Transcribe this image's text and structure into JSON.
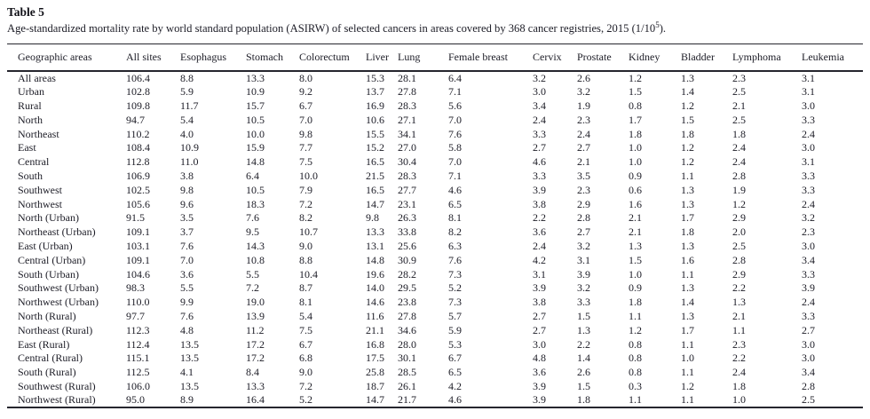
{
  "colors": {
    "text": "#1c1c26",
    "rule": "#26262e",
    "background": "#ffffff"
  },
  "doc": {
    "label": "Table 5",
    "caption": {
      "pre": "Age-standardized mortality rate by world standard population (ASIRW) of selected cancers in areas covered by 368 cancer registries, 2015 (1/10",
      "sup": "5",
      "post": ")."
    }
  },
  "table": {
    "columns": [
      "Geographic areas",
      "All sites",
      "Esophagus",
      "Stomach",
      "Colorectum",
      "Liver",
      "Lung",
      "Female breast",
      "Cervix",
      "Prostate",
      "Kidney",
      "Bladder",
      "Lymphoma",
      "Leukemia"
    ],
    "rows": [
      [
        "All areas",
        "106.4",
        "8.8",
        "13.3",
        "8.0",
        "15.3",
        "28.1",
        "6.4",
        "3.2",
        "2.6",
        "1.2",
        "1.3",
        "2.3",
        "3.1"
      ],
      [
        "Urban",
        "102.8",
        "5.9",
        "10.9",
        "9.2",
        "13.7",
        "27.8",
        "7.1",
        "3.0",
        "3.2",
        "1.5",
        "1.4",
        "2.5",
        "3.1"
      ],
      [
        "Rural",
        "109.8",
        "11.7",
        "15.7",
        "6.7",
        "16.9",
        "28.3",
        "5.6",
        "3.4",
        "1.9",
        "0.8",
        "1.2",
        "2.1",
        "3.0"
      ],
      [
        "North",
        "94.7",
        "5.4",
        "10.5",
        "7.0",
        "10.6",
        "27.1",
        "7.0",
        "2.4",
        "2.3",
        "1.7",
        "1.5",
        "2.5",
        "3.3"
      ],
      [
        "Northeast",
        "110.2",
        "4.0",
        "10.0",
        "9.8",
        "15.5",
        "34.1",
        "7.6",
        "3.3",
        "2.4",
        "1.8",
        "1.8",
        "1.8",
        "2.4"
      ],
      [
        "East",
        "108.4",
        "10.9",
        "15.9",
        "7.7",
        "15.2",
        "27.0",
        "5.8",
        "2.7",
        "2.7",
        "1.0",
        "1.2",
        "2.4",
        "3.0"
      ],
      [
        "Central",
        "112.8",
        "11.0",
        "14.8",
        "7.5",
        "16.5",
        "30.4",
        "7.0",
        "4.6",
        "2.1",
        "1.0",
        "1.2",
        "2.4",
        "3.1"
      ],
      [
        "South",
        "106.9",
        "3.8",
        "6.4",
        "10.0",
        "21.5",
        "28.3",
        "7.1",
        "3.3",
        "3.5",
        "0.9",
        "1.1",
        "2.8",
        "3.3"
      ],
      [
        "Southwest",
        "102.5",
        "9.8",
        "10.5",
        "7.9",
        "16.5",
        "27.7",
        "4.6",
        "3.9",
        "2.3",
        "0.6",
        "1.3",
        "1.9",
        "3.3"
      ],
      [
        "Northwest",
        "105.6",
        "9.6",
        "18.3",
        "7.2",
        "14.7",
        "23.1",
        "6.5",
        "3.8",
        "2.9",
        "1.6",
        "1.3",
        "1.2",
        "2.4"
      ],
      [
        "North (Urban)",
        "91.5",
        "3.5",
        "7.6",
        "8.2",
        "9.8",
        "26.3",
        "8.1",
        "2.2",
        "2.8",
        "2.1",
        "1.7",
        "2.9",
        "3.2"
      ],
      [
        "Northeast (Urban)",
        "109.1",
        "3.7",
        "9.5",
        "10.7",
        "13.3",
        "33.8",
        "8.2",
        "3.6",
        "2.7",
        "2.1",
        "1.8",
        "2.0",
        "2.3"
      ],
      [
        "East (Urban)",
        "103.1",
        "7.6",
        "14.3",
        "9.0",
        "13.1",
        "25.6",
        "6.3",
        "2.4",
        "3.2",
        "1.3",
        "1.3",
        "2.5",
        "3.0"
      ],
      [
        "Central (Urban)",
        "109.1",
        "7.0",
        "10.8",
        "8.8",
        "14.8",
        "30.9",
        "7.6",
        "4.2",
        "3.1",
        "1.5",
        "1.6",
        "2.8",
        "3.4"
      ],
      [
        "South (Urban)",
        "104.6",
        "3.6",
        "5.5",
        "10.4",
        "19.6",
        "28.2",
        "7.3",
        "3.1",
        "3.9",
        "1.0",
        "1.1",
        "2.9",
        "3.3"
      ],
      [
        "Southwest (Urban)",
        "98.3",
        "5.5",
        "7.2",
        "8.7",
        "14.0",
        "29.5",
        "5.2",
        "3.9",
        "3.2",
        "0.9",
        "1.3",
        "2.2",
        "3.9"
      ],
      [
        "Northwest (Urban)",
        "110.0",
        "9.9",
        "19.0",
        "8.1",
        "14.6",
        "23.8",
        "7.3",
        "3.8",
        "3.3",
        "1.8",
        "1.4",
        "1.3",
        "2.4"
      ],
      [
        "North (Rural)",
        "97.7",
        "7.6",
        "13.9",
        "5.4",
        "11.6",
        "27.8",
        "5.7",
        "2.7",
        "1.5",
        "1.1",
        "1.3",
        "2.1",
        "3.3"
      ],
      [
        "Northeast (Rural)",
        "112.3",
        "4.8",
        "11.2",
        "7.5",
        "21.1",
        "34.6",
        "5.9",
        "2.7",
        "1.3",
        "1.2",
        "1.7",
        "1.1",
        "2.7"
      ],
      [
        "East (Rural)",
        "112.4",
        "13.5",
        "17.2",
        "6.7",
        "16.8",
        "28.0",
        "5.3",
        "3.0",
        "2.2",
        "0.8",
        "1.1",
        "2.3",
        "3.0"
      ],
      [
        "Central (Rural)",
        "115.1",
        "13.5",
        "17.2",
        "6.8",
        "17.5",
        "30.1",
        "6.7",
        "4.8",
        "1.4",
        "0.8",
        "1.0",
        "2.2",
        "3.0"
      ],
      [
        "South (Rural)",
        "112.5",
        "4.1",
        "8.4",
        "9.0",
        "25.8",
        "28.5",
        "6.5",
        "3.6",
        "2.6",
        "0.8",
        "1.1",
        "2.4",
        "3.4"
      ],
      [
        "Southwest (Rural)",
        "106.0",
        "13.5",
        "13.3",
        "7.2",
        "18.7",
        "26.1",
        "4.2",
        "3.9",
        "1.5",
        "0.3",
        "1.2",
        "1.8",
        "2.8"
      ],
      [
        "Northwest (Rural)",
        "95.0",
        "8.9",
        "16.4",
        "5.2",
        "14.7",
        "21.7",
        "4.6",
        "3.9",
        "1.8",
        "1.1",
        "1.1",
        "1.0",
        "2.5"
      ]
    ]
  }
}
